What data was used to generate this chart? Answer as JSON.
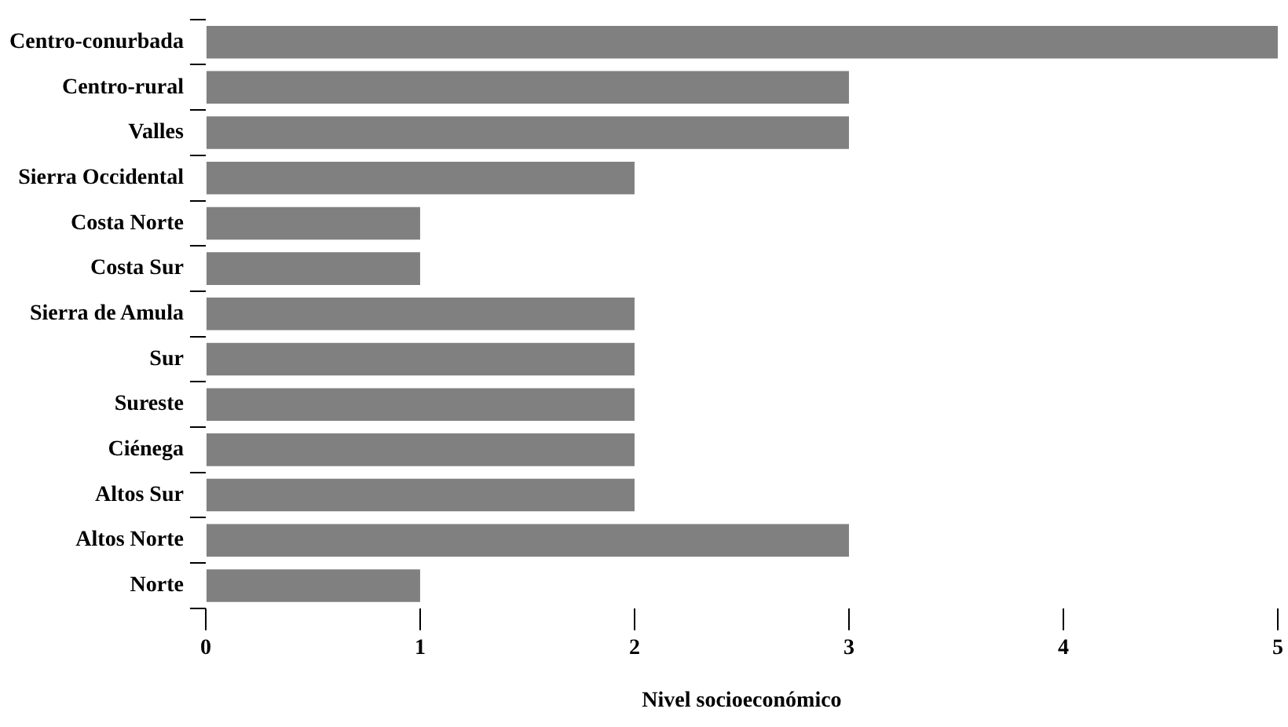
{
  "chart_data": {
    "type": "bar",
    "orientation": "horizontal",
    "xlabel": "Nivel socioeconómico",
    "categories": [
      "Centro-conurbada",
      "Centro-rural",
      "Valles",
      "Sierra Occidental",
      "Costa Norte",
      "Costa Sur",
      "Sierra de Amula",
      "Sur",
      "Sureste",
      "Ciénega",
      "Altos Sur",
      "Altos Norte",
      "Norte"
    ],
    "values": [
      5,
      3,
      3,
      2,
      1,
      1,
      2,
      2,
      2,
      2,
      2,
      3,
      1
    ],
    "color": "#808080",
    "xlim": [
      0,
      5
    ],
    "xticks": [
      0,
      1,
      2,
      3,
      4,
      5
    ],
    "grid": false,
    "legend": false
  }
}
